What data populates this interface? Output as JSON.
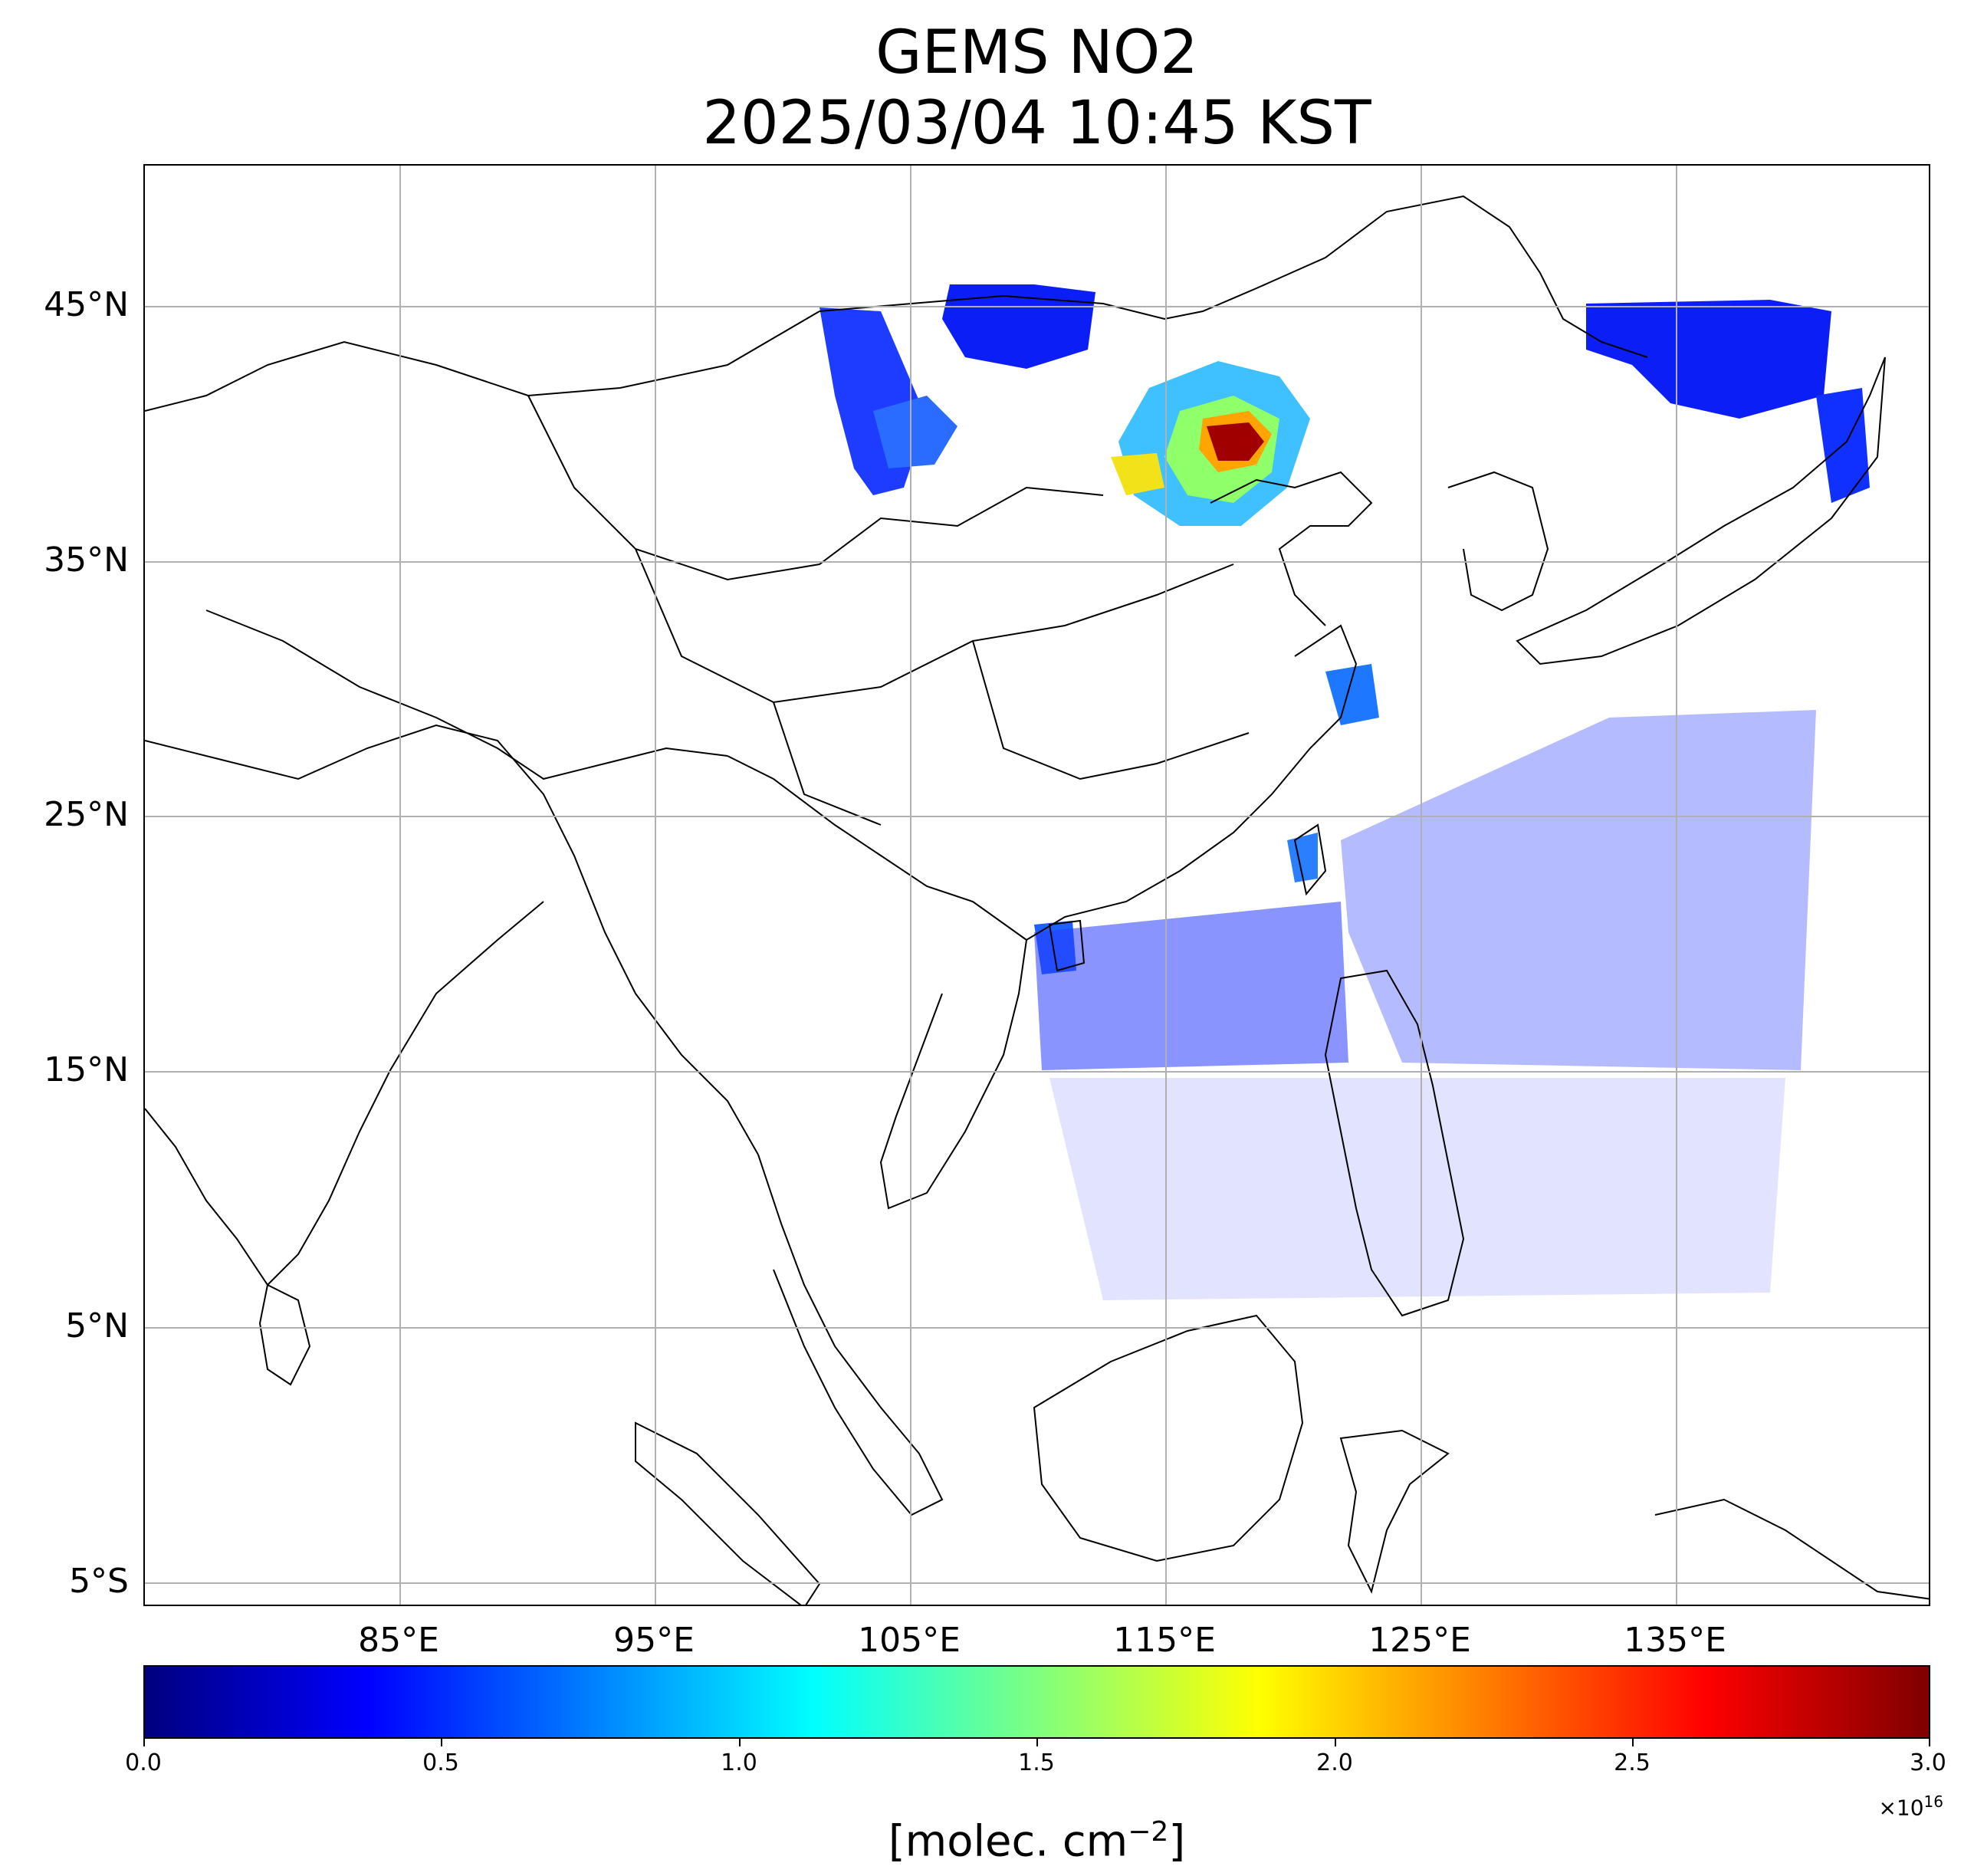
{
  "title": {
    "line1": "GEMS NO2",
    "line2": "2025/03/04 10:45 KST"
  },
  "map": {
    "lat_labels": [
      "45°N",
      "35°N",
      "25°N",
      "15°N",
      "5°N",
      "5°S"
    ],
    "lon_labels": [
      "85°E",
      "95°E",
      "105°E",
      "115°E",
      "125°E",
      "135°E"
    ],
    "gridlines": true,
    "background": "#ffffff",
    "coastline_color": "#000000",
    "gridline_color": "#b0b0b0"
  },
  "colorbar": {
    "colormap": "jet",
    "min": 0.0,
    "max": 3.0,
    "tick_labels": [
      "0.0",
      "0.5",
      "1.0",
      "1.5",
      "2.0",
      "2.5",
      "3.0"
    ],
    "exponent_base": "×10",
    "exponent_power": "16",
    "label_prefix": "[molec. cm",
    "label_power": "−2",
    "label_suffix": "]"
  }
}
